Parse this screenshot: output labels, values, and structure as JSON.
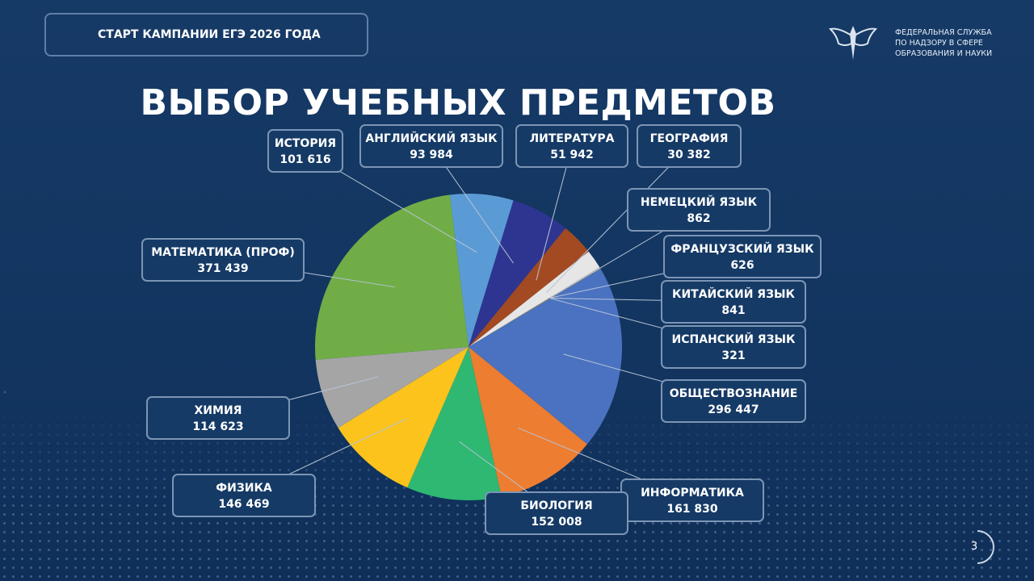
{
  "header": "СТАРТ КАМПАНИИ ЕГЭ 2026 ГОДА",
  "organization": "ФЕДЕРАЛЬНАЯ СЛУЖБА\nПО НАДЗОРУ В СФЕРЕ\nОБРАЗОВАНИЯ И НАУКИ",
  "page_number": "3",
  "chart_data": {
    "type": "pie",
    "title": "ВЫБОР УЧЕБНЫХ ПРЕДМЕТОВ",
    "categories": [
      "ИСТОРИЯ",
      "АНГЛИЙСКИЙ ЯЗЫК",
      "ЛИТЕРАТУРА",
      "ГЕОГРАФИЯ",
      "НЕМЕЦКИЙ ЯЗЫК",
      "ФРАНЦУЗСКИЙ ЯЗЫК",
      "КИТАЙСКИЙ ЯЗЫК",
      "ИСПАНСКИЙ ЯЗЫК",
      "ОБЩЕСТВОЗНАНИЕ",
      "ИНФОРМАТИКА",
      "БИОЛОГИЯ",
      "ФИЗИКА",
      "ХИМИЯ",
      "МАТЕМАТИКА (ПРОФ)"
    ],
    "values": [
      101616,
      93984,
      51942,
      30382,
      862,
      626,
      841,
      321,
      296447,
      161830,
      152008,
      146469,
      114623,
      371439
    ],
    "value_labels": [
      "101 616",
      "93 984",
      "51 942",
      "30 382",
      "862",
      "626",
      "841",
      "321",
      "296 447",
      "161 830",
      "152 008",
      "146 469",
      "114 623",
      "371 439"
    ],
    "colors": [
      "#5b9bd5",
      "#2e3591",
      "#a34a22",
      "#e6e6e6",
      "#bdbdbd",
      "#ed7d31",
      "#a5a5a5",
      "#ffc000",
      "#4a72c0",
      "#ed7d31",
      "#2eb872",
      "#fbc31c",
      "#a5a5a5",
      "#70ad47"
    ]
  }
}
